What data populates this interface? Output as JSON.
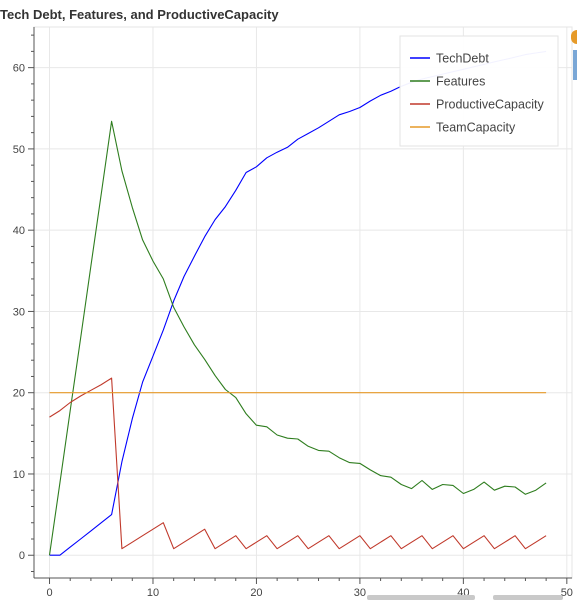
{
  "chart_data": {
    "type": "line",
    "title": "Tech Debt, Features, and ProductiveCapacity",
    "xlabel": "",
    "ylabel": "",
    "xlim": [
      -1.5,
      50.5
    ],
    "ylim": [
      -2.8,
      65.0
    ],
    "xticks": [
      0,
      10,
      20,
      30,
      40,
      50
    ],
    "yticks": [
      0,
      10,
      20,
      30,
      40,
      50,
      60
    ],
    "grid": true,
    "legend_position": "top-right",
    "series": [
      {
        "name": "TechDebt",
        "color": "#0000ff",
        "x": [
          0,
          1,
          2,
          3,
          4,
          5,
          6,
          7,
          8,
          9,
          10,
          11,
          12,
          13,
          14,
          15,
          16,
          17,
          18,
          19,
          20,
          21,
          22,
          23,
          24,
          25,
          26,
          27,
          28,
          29,
          30,
          31,
          32,
          33,
          34,
          35,
          36,
          37,
          38,
          39,
          40,
          41,
          42,
          43,
          44,
          45,
          46,
          47,
          48
        ],
        "y": [
          0,
          0,
          1,
          2,
          3,
          4,
          5,
          11.5,
          16.8,
          21.3,
          24.5,
          27.7,
          31.3,
          34.3,
          36.8,
          39.2,
          41.3,
          42.9,
          44.9,
          47.1,
          47.8,
          48.9,
          49.6,
          50.2,
          51.2,
          51.9,
          52.6,
          53.4,
          54.2,
          54.6,
          55.1,
          55.9,
          56.6,
          57.1,
          57.7,
          58.2,
          58.6,
          58.9,
          59.2,
          59.5,
          59.8,
          60.1,
          60.4,
          60.7,
          61.0,
          61.3,
          61.6,
          61.8,
          62.0
        ]
      },
      {
        "name": "Features",
        "color": "#2e7d1e",
        "x": [
          0,
          1,
          2,
          3,
          4,
          5,
          6,
          7,
          8,
          9,
          10,
          11,
          12,
          13,
          14,
          15,
          16,
          17,
          18,
          19,
          20,
          21,
          22,
          23,
          24,
          25,
          26,
          27,
          28,
          29,
          30,
          31,
          32,
          33,
          34,
          35,
          36,
          37,
          38,
          39,
          40,
          41,
          42,
          43,
          44,
          45,
          46,
          47,
          48
        ],
        "y": [
          0,
          8.9,
          17.8,
          26.7,
          35.6,
          44.5,
          53.4,
          47.3,
          42.8,
          38.8,
          36.2,
          34.0,
          30.5,
          28.1,
          25.9,
          24.1,
          22.1,
          20.4,
          19.4,
          17.4,
          16.0,
          15.8,
          14.8,
          14.4,
          14.3,
          13.4,
          12.9,
          12.8,
          12.0,
          11.4,
          11.3,
          10.5,
          9.8,
          9.6,
          8.7,
          8.2,
          9.2,
          8.1,
          8.7,
          8.6,
          7.6,
          8.1,
          9.0,
          8.0,
          8.5,
          8.4,
          7.5,
          8.0,
          8.9
        ]
      },
      {
        "name": "ProductiveCapacity",
        "color": "#c0392b",
        "x": [
          0,
          1,
          2,
          3,
          4,
          5,
          6,
          7,
          8,
          9,
          10,
          11,
          12,
          13,
          14,
          15,
          16,
          17,
          18,
          19,
          20,
          21,
          22,
          23,
          24,
          25,
          26,
          27,
          28,
          29,
          30,
          31,
          32,
          33,
          34,
          35,
          36,
          37,
          38,
          39,
          40,
          41,
          42,
          43,
          44,
          45,
          46,
          47,
          48
        ],
        "y": [
          17,
          17.8,
          18.8,
          19.6,
          20.3,
          21.0,
          21.8,
          0.8,
          1.6,
          2.4,
          3.2,
          4.0,
          0.8,
          1.6,
          2.4,
          3.2,
          0.8,
          1.6,
          2.4,
          0.8,
          1.6,
          2.4,
          0.8,
          1.6,
          2.4,
          0.8,
          1.6,
          2.4,
          0.8,
          1.6,
          2.4,
          0.8,
          1.6,
          2.4,
          0.8,
          1.6,
          2.4,
          0.8,
          1.6,
          2.4,
          0.8,
          1.6,
          2.4,
          0.8,
          1.6,
          2.4,
          0.8,
          1.6,
          2.4
        ]
      },
      {
        "name": "TeamCapacity",
        "color": "#e69a28",
        "x": [
          0,
          48
        ],
        "y": [
          20,
          20
        ]
      }
    ]
  },
  "toolbar": {
    "accent_color": "#7aa7d6",
    "logo_color": "#e69a28"
  }
}
